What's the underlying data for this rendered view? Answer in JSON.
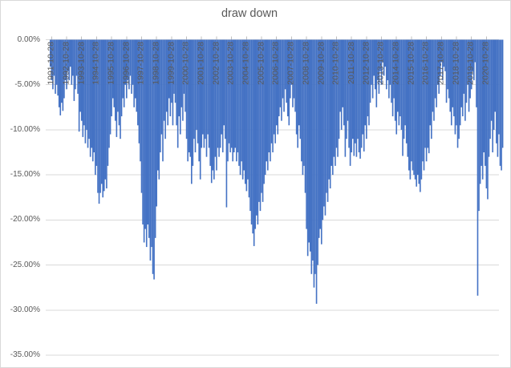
{
  "chart_title": "draw down",
  "colors": {
    "bar": "#4472C4",
    "gridline": "#D9D9D9",
    "tick_mark": "#BFBFBF",
    "axis_text": "#595959",
    "title_text": "#595959",
    "border": "#D9D9D9",
    "background": "#FFFFFF"
  },
  "y_axis": {
    "tick_labels": [
      "0.00%",
      "-5.00%",
      "-10.00%",
      "-15.00%",
      "-20.00%",
      "-25.00%",
      "-30.00%",
      "-35.00%"
    ]
  },
  "x_axis": {
    "tick_labels": [
      "1991-10-28",
      "1992-10-28",
      "1993-10-28",
      "1994-10-28",
      "1995-10-28",
      "1996-10-28",
      "1997-10-28",
      "1998-10-28",
      "1999-10-28",
      "2000-10-28",
      "2001-10-28",
      "2002-10-28",
      "2003-10-28",
      "2004-10-28",
      "2005-10-28",
      "2006-10-28",
      "2007-10-28",
      "2008-10-28",
      "2009-10-28",
      "2010-10-28",
      "2011-10-28",
      "2012-10-28",
      "2013-10-28",
      "2014-10-28",
      "2015-10-28",
      "2016-10-28",
      "2017-10-28",
      "2018-10-28",
      "2019-10-28",
      "2020-10-28"
    ]
  },
  "chart_data": {
    "type": "bar",
    "title": "draw down",
    "xlabel": "",
    "ylabel": "",
    "unit": "percent",
    "ylim": [
      -35,
      0
    ],
    "grid": "horizontal",
    "legend": "none",
    "y_tick_labels": [
      "0.00%",
      "-5.00%",
      "-10.00%",
      "-15.00%",
      "-20.00%",
      "-25.00%",
      "-30.00%",
      "-35.00%"
    ],
    "x_tick_labels": [
      "1991-10-28",
      "1992-10-28",
      "1993-10-28",
      "1994-10-28",
      "1995-10-28",
      "1996-10-28",
      "1997-10-28",
      "1998-10-28",
      "1999-10-28",
      "2000-10-28",
      "2001-10-28",
      "2002-10-28",
      "2003-10-28",
      "2004-10-28",
      "2005-10-28",
      "2006-10-28",
      "2007-10-28",
      "2008-10-28",
      "2009-10-28",
      "2010-10-28",
      "2011-10-28",
      "2012-10-28",
      "2013-10-28",
      "2014-10-28",
      "2015-10-28",
      "2016-10-28",
      "2017-10-28",
      "2018-10-28",
      "2019-10-28",
      "2020-10-28"
    ],
    "series": [
      {
        "name": "draw down",
        "start": "1991-09",
        "end": "2021-11",
        "frequency": "monthly",
        "values": [
          -3,
          -4.5,
          -5.5,
          -4,
          -6,
          -5,
          -6.2,
          -7.5,
          -8.4,
          -7,
          -7.9,
          -6.5,
          -4.5,
          -5.5,
          -3.5,
          -4.5,
          -3,
          -5,
          -4,
          -6.8,
          -5.5,
          -4,
          -6,
          -10.2,
          -8,
          -9,
          -10.8,
          -9.5,
          -11.5,
          -10,
          -12,
          -11,
          -13,
          -12,
          -13.5,
          -12.5,
          -15,
          -14,
          -17,
          -18.2,
          -17,
          -16,
          -17.5,
          -16.8,
          -15.5,
          -16.5,
          -14,
          -12,
          -10.5,
          -8.5,
          -6.5,
          -7.5,
          -9,
          -10.8,
          -8,
          -9.5,
          -11,
          -8.5,
          -6.5,
          -7.5,
          -5,
          -6.5,
          -4.5,
          -5.5,
          -4,
          -6,
          -5,
          -7.5,
          -6.5,
          -8,
          -9.5,
          -11.5,
          -13.5,
          -17,
          -20.5,
          -22.5,
          -21,
          -23,
          -20.5,
          -22,
          -24.5,
          -23,
          -26,
          -26.6,
          -22,
          -18.5,
          -14.5,
          -15.5,
          -12.5,
          -10.5,
          -13.5,
          -9,
          -11,
          -8,
          -9.5,
          -6.5,
          -8.5,
          -7,
          -9.5,
          -6,
          -7,
          -9.5,
          -12,
          -8.5,
          -10.5,
          -7.5,
          -9,
          -6,
          -8,
          -11,
          -13.5,
          -12.5,
          -13,
          -16,
          -14,
          -11,
          -12.5,
          -10,
          -11.5,
          -13.5,
          -15.5,
          -12,
          -10.5,
          -12,
          -11,
          -13,
          -10.5,
          -12,
          -14,
          -15.9,
          -14.5,
          -15.5,
          -13,
          -14.5,
          -12,
          -13,
          -12,
          -10.5,
          -12.5,
          -9.5,
          -11,
          -18.6,
          -13.5,
          -11.5,
          -12.5,
          -12,
          -13.5,
          -12.5,
          -12,
          -13.5,
          -12.5,
          -14,
          -15,
          -13.5,
          -15.5,
          -14.5,
          -16,
          -16.8,
          -15.5,
          -17.5,
          -19,
          -20.5,
          -21.5,
          -22.9,
          -21,
          -19.5,
          -20.5,
          -18,
          -19,
          -17,
          -18,
          -16,
          -15,
          -13.5,
          -14.5,
          -12.5,
          -13.5,
          -11.5,
          -12.5,
          -10.5,
          -11.5,
          -9.5,
          -10.5,
          -8.5,
          -7.5,
          -9,
          -6.5,
          -8,
          -5.5,
          -7,
          -8.5,
          -9.5,
          -6.5,
          -5,
          -7.5,
          -6.5,
          -8,
          -10.5,
          -12,
          -9.5,
          -11,
          -13.5,
          -15,
          -14,
          -17,
          -21,
          -24,
          -22.5,
          -23.5,
          -26,
          -24.5,
          -27.5,
          -26,
          -29.3,
          -25,
          -22,
          -21,
          -22.7,
          -20,
          -18.5,
          -19.5,
          -17,
          -18,
          -15.5,
          -16.5,
          -14,
          -15,
          -13,
          -14,
          -12,
          -13,
          -11,
          -8,
          -10,
          -7.5,
          -9.5,
          -13,
          -11,
          -9,
          -12,
          -14,
          -12.5,
          -11,
          -12.9,
          -11.5,
          -13,
          -11,
          -12.5,
          -13.2,
          -12,
          -10.5,
          -12.4,
          -9.5,
          -11,
          -8.5,
          -9.5,
          -7,
          -5,
          -6.5,
          -4,
          -5.5,
          -7.5,
          -4.5,
          -6,
          -3.5,
          -5,
          -2.5,
          -4,
          -3,
          -5.5,
          -4.5,
          -6.5,
          -5,
          -7,
          -8.5,
          -6.5,
          -9,
          -10.5,
          -8,
          -9.5,
          -8.5,
          -10,
          -12.9,
          -11,
          -9.5,
          -11.5,
          -13,
          -14.5,
          -15.5,
          -13.5,
          -14.5,
          -15,
          -15.5,
          -16.3,
          -15,
          -16,
          -16.9,
          -15.5,
          -13.5,
          -14.5,
          -12,
          -13.5,
          -12,
          -12.6,
          -9.5,
          -11,
          -8,
          -9,
          -6.5,
          -7.5,
          -5,
          -6,
          -4,
          -2.5,
          -4.5,
          -3,
          -3.5,
          -7,
          -5.5,
          -6.5,
          -8,
          -9.5,
          -7.5,
          -8.5,
          -10.5,
          -9.5,
          -12,
          -11,
          -9.5,
          -7.5,
          -8.5,
          -6,
          -9,
          -7,
          -5,
          -8,
          -6.5,
          -5.5,
          -3.5,
          -4.5,
          -2.5,
          -7.5,
          -28.4,
          -19,
          -16,
          -14,
          -15.5,
          -12.5,
          -14,
          -16.5,
          -17.7,
          -13,
          -11,
          -9,
          -12.5,
          -10,
          -8,
          -11.5,
          -13,
          -10.5,
          -14,
          -14.5,
          -12
        ]
      }
    ]
  }
}
